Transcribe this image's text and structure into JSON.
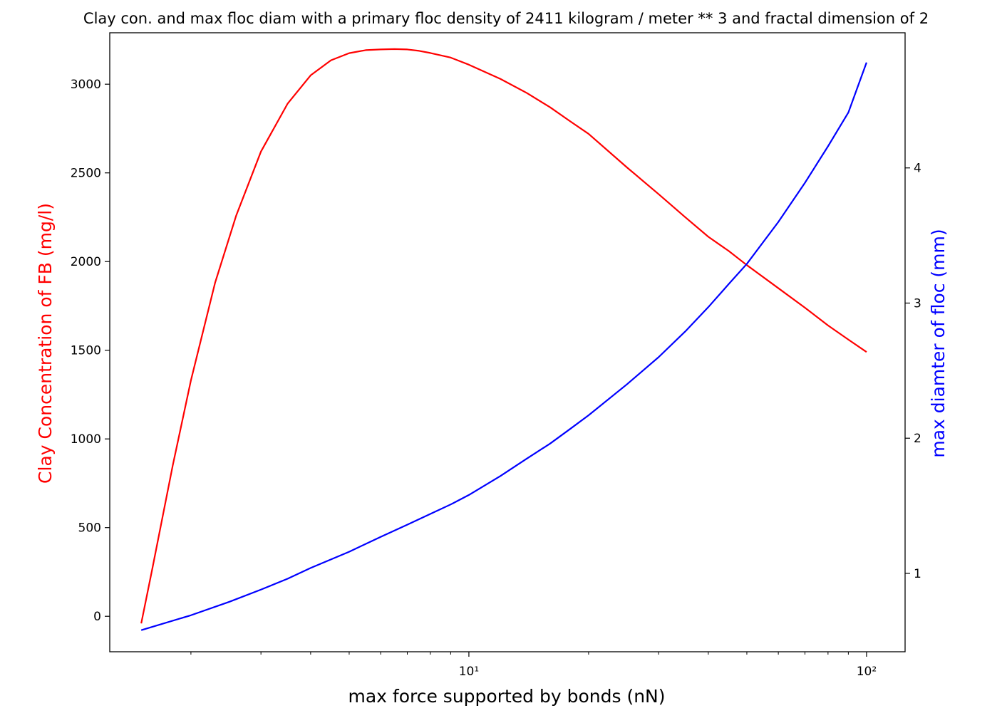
{
  "chart_data": {
    "type": "line",
    "title": "Clay con. and max floc diam with a primary floc density of 2411 kilogram / meter ** 3 and fractal dimension of 2",
    "xlabel": "max force supported by bonds (nN)",
    "x_scale": "log",
    "xlim": [
      1.25,
      125
    ],
    "x_ticks": [
      {
        "value": 10,
        "label": "10¹"
      },
      {
        "value": 100,
        "label": "10²"
      }
    ],
    "y_left": {
      "label": "Clay Concentration of FB (mg/l)",
      "color": "#ff0000",
      "lim": [
        -200,
        3290
      ],
      "ticks": [
        0,
        500,
        1000,
        1500,
        2000,
        2500,
        3000
      ],
      "tick_labels": [
        "0",
        "500",
        "1000",
        "1500",
        "2000",
        "2500",
        "3000"
      ]
    },
    "y_right": {
      "label": "max diamter of floc (mm)",
      "color": "#0000ff",
      "lim": [
        0.42,
        5.0
      ],
      "ticks": [
        1,
        2,
        3,
        4
      ],
      "tick_labels": [
        "1",
        "2",
        "3",
        "4"
      ]
    },
    "series": [
      {
        "axis": "left",
        "color": "#ff0000",
        "x": [
          1.5,
          1.6,
          1.8,
          2.0,
          2.3,
          2.6,
          3.0,
          3.5,
          4.0,
          4.5,
          5.0,
          5.5,
          6.0,
          6.5,
          7.0,
          7.5,
          8.0,
          9.0,
          10,
          12,
          14,
          16,
          18,
          20,
          25,
          30,
          35,
          40,
          45,
          50,
          60,
          70,
          80,
          90,
          100
        ],
        "y": [
          -40,
          270,
          850,
          1330,
          1880,
          2260,
          2620,
          2890,
          3050,
          3135,
          3175,
          3192,
          3196,
          3198,
          3196,
          3188,
          3176,
          3150,
          3110,
          3030,
          2950,
          2870,
          2790,
          2720,
          2530,
          2380,
          2250,
          2140,
          2060,
          1980,
          1850,
          1740,
          1640,
          1560,
          1490
        ]
      },
      {
        "axis": "right",
        "color": "#0000ff",
        "x": [
          1.5,
          2.0,
          2.5,
          3.0,
          3.5,
          4.0,
          5.0,
          6.0,
          7.0,
          8.0,
          9.0,
          10,
          12,
          14,
          16,
          18,
          20,
          25,
          30,
          35,
          40,
          45,
          50,
          60,
          70,
          80,
          90,
          100
        ],
        "y": [
          0.58,
          0.69,
          0.79,
          0.88,
          0.96,
          1.04,
          1.16,
          1.27,
          1.36,
          1.44,
          1.51,
          1.58,
          1.72,
          1.85,
          1.96,
          2.07,
          2.17,
          2.4,
          2.6,
          2.79,
          2.97,
          3.14,
          3.29,
          3.6,
          3.89,
          4.16,
          4.41,
          4.78
        ]
      }
    ]
  }
}
